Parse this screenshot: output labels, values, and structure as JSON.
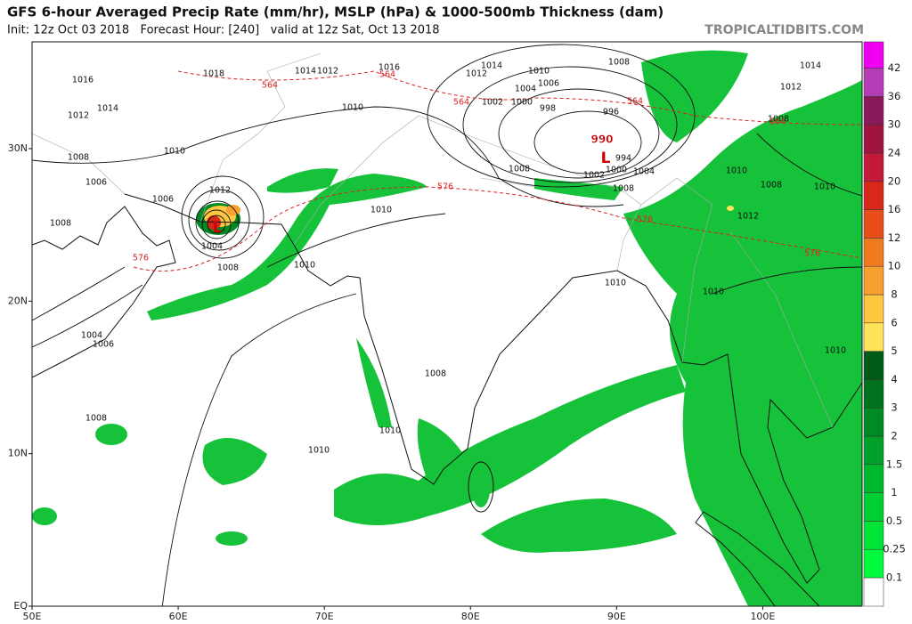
{
  "header": {
    "title": "GFS 6-hour Averaged Precip Rate (mm/hr), MSLP (hPa) & 1000-500mb Thickness (dam)",
    "subtitle": "Init: 12z Oct 03 2018   Forecast Hour: [240]   valid at 12z Sat, Oct 13 2018",
    "credit": "TROPICALTIDBITS.COM"
  },
  "map": {
    "xlim": [
      50,
      106.8
    ],
    "ylim": [
      0,
      37
    ],
    "xticks": [
      {
        "value": 50,
        "label": "50E"
      },
      {
        "value": 60,
        "label": "60E"
      },
      {
        "value": 70,
        "label": "70E"
      },
      {
        "value": 80,
        "label": "80E"
      },
      {
        "value": 90,
        "label": "90E"
      },
      {
        "value": 100,
        "label": "100E"
      }
    ],
    "yticks": [
      {
        "value": 0,
        "label": "EQ"
      },
      {
        "value": 10,
        "label": "10N"
      },
      {
        "value": 20,
        "label": "20N"
      },
      {
        "value": 30,
        "label": "30N"
      }
    ],
    "isobar_labels": [
      1016,
      1014,
      1012,
      1018,
      1014,
      1012,
      1016,
      1014,
      1010,
      1008,
      1012,
      1004,
      1006,
      1002,
      1000,
      998,
      996,
      994,
      1002,
      1000,
      1004,
      1008,
      1008,
      1010,
      1010,
      1008,
      1006,
      1006,
      1008,
      1012,
      1004,
      1008,
      1010,
      1010,
      1010,
      1004,
      1006,
      1008,
      1008,
      1010,
      1010,
      1014,
      1012,
      1008,
      1010,
      1008,
      1010,
      1012,
      1010,
      1010
    ],
    "thickness_labels": [
      564,
      564,
      564,
      564,
      564,
      576,
      576,
      576,
      576
    ],
    "low_pressure": [
      990
    ],
    "low_markers": [
      "L",
      "L"
    ]
  },
  "colorbar": {
    "levels": [
      0.1,
      0.25,
      0.5,
      1,
      1.5,
      2,
      3,
      4,
      5,
      6,
      8,
      10,
      12,
      16,
      20,
      24,
      30,
      36,
      42
    ],
    "colors": [
      "#ffffff",
      "#00fa3c",
      "#00e436",
      "#00cf32",
      "#00b82e",
      "#00a029",
      "#008a24",
      "#00721e",
      "#005a18",
      "#ffe45a",
      "#ffc840",
      "#f7a030",
      "#f07a20",
      "#e84e1a",
      "#d8281a",
      "#c41a3a",
      "#a01440",
      "#881a5a",
      "#b43cb4",
      "#f000f0"
    ]
  }
}
